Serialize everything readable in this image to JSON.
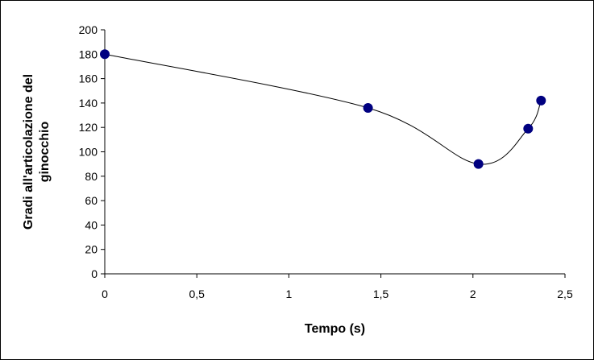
{
  "chart_data": {
    "type": "scatter",
    "title": "",
    "xlabel": "Tempo (s)",
    "ylabel_lines": [
      "Gradi all'articolazione del",
      "ginocchio"
    ],
    "xlim": [
      0,
      2.5
    ],
    "ylim": [
      0,
      200
    ],
    "x_ticks": [
      0,
      0.5,
      1,
      1.5,
      2,
      2.5
    ],
    "x_tick_labels": [
      "0",
      "0,5",
      "1",
      "1,5",
      "2",
      "2,5"
    ],
    "y_ticks": [
      0,
      20,
      40,
      60,
      80,
      100,
      120,
      140,
      160,
      180,
      200
    ],
    "y_tick_labels": [
      "0",
      "20",
      "40",
      "60",
      "80",
      "100",
      "120",
      "140",
      "160",
      "180",
      "200"
    ],
    "grid": false,
    "smooth_line": true,
    "series": [
      {
        "x": [
          0,
          1.43,
          2.03,
          2.3,
          2.37
        ],
        "y": [
          180,
          136,
          90,
          119,
          142
        ]
      }
    ],
    "colors": {
      "marker": "#000080",
      "line": "#000000",
      "axis": "#000000"
    }
  }
}
